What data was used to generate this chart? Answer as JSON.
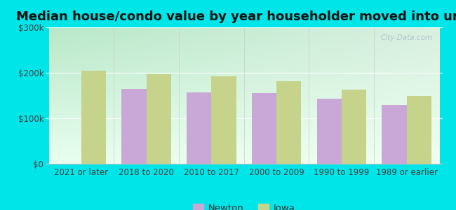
{
  "title": "Median house/condo value by year householder moved into unit",
  "categories": [
    "2021 or later",
    "2018 to 2020",
    "2010 to 2017",
    "2000 to 2009",
    "1990 to 1999",
    "1989 or earlier"
  ],
  "newton_values": [
    null,
    165000,
    157000,
    156000,
    143000,
    130000
  ],
  "iowa_values": [
    205000,
    197000,
    192000,
    182000,
    163000,
    150000
  ],
  "newton_color": "#c9a8d8",
  "iowa_color": "#c5d48a",
  "outer_bg": "#00e5e8",
  "ylim": [
    0,
    300000
  ],
  "yticks": [
    0,
    100000,
    200000,
    300000
  ],
  "ytick_labels": [
    "$0",
    "$100k",
    "$200k",
    "$300k"
  ],
  "legend_labels": [
    "Newton",
    "Iowa"
  ],
  "bar_width": 0.38,
  "title_fontsize": 13,
  "tick_fontsize": 8.5,
  "legend_fontsize": 9.5,
  "grad_top_left": "#b8e8c8",
  "grad_bottom_right": "#eefff0"
}
